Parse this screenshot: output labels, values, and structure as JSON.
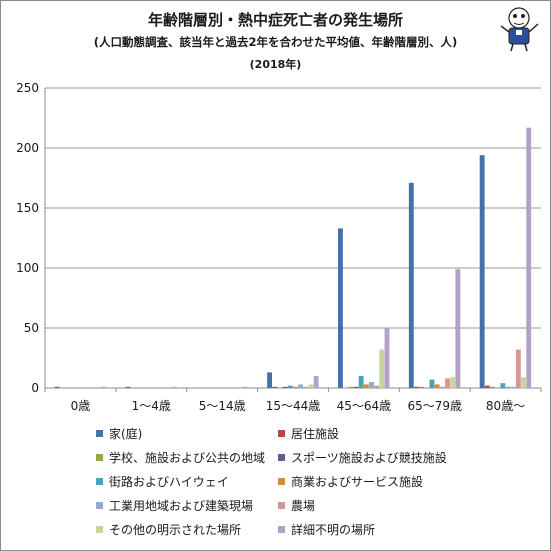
{
  "title": {
    "main": "年齢階層別・熱中症死亡者の発生場所",
    "sub": "(人口動態調査、該当年と過去2年を合わせた平均値、年齢階層別、人)",
    "year": "(2018年)"
  },
  "chart_data": {
    "type": "bar",
    "categories": [
      "0歳",
      "1〜4歳",
      "5〜14歳",
      "15〜44歳",
      "45〜64歳",
      "65〜79歳",
      "80歳〜"
    ],
    "ylim": [
      0,
      250
    ],
    "yticks": [
      0,
      50,
      100,
      150,
      200,
      250
    ],
    "grid": true,
    "legend_position": "bottom",
    "series": [
      {
        "name": "家(庭)",
        "color": "#4472a8",
        "values": [
          1,
          1,
          0,
          13,
          133,
          171,
          194
        ]
      },
      {
        "name": "居住施設",
        "color": "#b94746",
        "values": [
          0,
          0,
          0,
          1,
          0,
          1,
          2
        ]
      },
      {
        "name": "学校、施設および公共の地域",
        "color": "#8fa94b",
        "values": [
          0,
          0,
          0,
          0,
          1,
          1,
          1
        ]
      },
      {
        "name": "スポーツ施設および競技施設",
        "color": "#6c5a8e",
        "values": [
          0,
          0,
          0,
          1,
          1,
          0,
          0
        ]
      },
      {
        "name": "街路およびハイウェイ",
        "color": "#4aa3b9",
        "values": [
          0,
          0,
          0,
          2,
          10,
          7,
          4
        ]
      },
      {
        "name": "商業およびサービス施設",
        "color": "#d98b3a",
        "values": [
          0,
          0,
          0,
          1,
          3,
          3,
          1
        ]
      },
      {
        "name": "工業用地域および建築現場",
        "color": "#93a9d1",
        "values": [
          0,
          0,
          0,
          3,
          5,
          1,
          1
        ]
      },
      {
        "name": "農場",
        "color": "#d99593",
        "values": [
          0,
          0,
          0,
          1,
          2,
          8,
          32
        ]
      },
      {
        "name": "その他の明示された場所",
        "color": "#c4d69b",
        "values": [
          1,
          1,
          1,
          3,
          32,
          9,
          9
        ]
      },
      {
        "name": "詳細不明の場所",
        "color": "#b3a2c7",
        "values": [
          1,
          1,
          1,
          10,
          50,
          99,
          217
        ]
      }
    ]
  }
}
